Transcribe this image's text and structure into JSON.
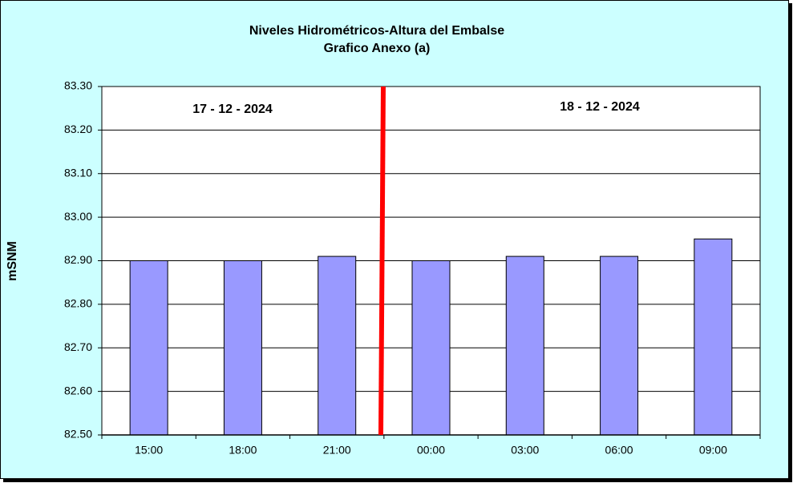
{
  "chart_data": {
    "type": "bar",
    "title": "Niveles Hidrométricos-Altura del Embalse",
    "subtitle": "Grafico Anexo (a)",
    "y_label": "mSNM",
    "annotations": [
      "17 - 12 - 2024",
      "18 - 12 - 2024"
    ],
    "categories": [
      "15:00",
      "18:00",
      "21:00",
      "00:00",
      "03:00",
      "06:00",
      "09:00"
    ],
    "values": [
      82.9,
      82.9,
      82.91,
      82.9,
      82.91,
      82.91,
      82.95
    ],
    "color": "#9999ff",
    "ylim": [
      82.5,
      83.3
    ],
    "yticks": [
      {
        "value": 82.5,
        "label": "82.50"
      },
      {
        "value": 82.6,
        "label": "82.60"
      },
      {
        "value": 82.7,
        "label": "82.70"
      },
      {
        "value": 82.8,
        "label": "82.80"
      },
      {
        "value": 82.9,
        "label": "82.90"
      },
      {
        "value": 83.0,
        "label": "83.00"
      },
      {
        "value": 83.1,
        "label": "83.10"
      },
      {
        "value": 83.2,
        "label": "83.20"
      },
      {
        "value": 83.3,
        "label": "83.30"
      }
    ],
    "grid": true
  }
}
